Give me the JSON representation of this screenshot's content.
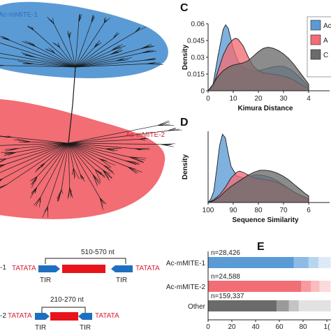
{
  "colors": {
    "family1": "#5b9bd5",
    "family2": "#f26d74",
    "other": "#6b6b6b",
    "tir": "#1f6fc1",
    "core": "#e8141b",
    "tsd_text": "#d4243a"
  },
  "panel_a": {
    "label1": "Ac-mMITE-1",
    "label2": "Ac-mMITE-2"
  },
  "panel_b": {
    "row1_len": "510-570 nt",
    "row2_len": "210-270 nt",
    "tsd": "TATATA",
    "tir": "TIR",
    "row1_label": "-1",
    "row2_label": "-2"
  },
  "panel_c": {
    "letter": "C",
    "legend": [
      "Ac",
      "A",
      "C"
    ]
  },
  "panel_d": {
    "letter": "D"
  },
  "panel_e": {
    "letter": "E"
  },
  "chart_data": [
    {
      "id": "C",
      "type": "area",
      "xlabel": "Kimura Distance",
      "ylabel": "Density",
      "xlim": [
        0,
        40
      ],
      "ylim": [
        0,
        0.06
      ],
      "xticks": [
        "0",
        "10",
        "20",
        "30",
        "4"
      ],
      "yticks": [
        "0",
        "0.015",
        "0.03",
        "0.045",
        "0.06"
      ],
      "grid": false,
      "legend_position": "top-right",
      "series": [
        {
          "x": [
            0,
            2,
            4,
            6,
            7,
            8,
            10,
            12,
            14,
            16,
            18,
            20,
            22,
            25,
            28,
            30,
            33,
            36,
            40
          ],
          "y": [
            0,
            0.006,
            0.032,
            0.055,
            0.059,
            0.056,
            0.038,
            0.026,
            0.021,
            0.019,
            0.018,
            0.018,
            0.019,
            0.021,
            0.022,
            0.022,
            0.019,
            0.013,
            0.004
          ]
        },
        {
          "x": [
            0,
            2,
            4,
            6,
            8,
            10,
            11,
            12,
            14,
            16,
            18,
            20,
            22,
            25,
            28,
            30,
            33,
            36,
            40
          ],
          "y": [
            0,
            0.004,
            0.018,
            0.032,
            0.041,
            0.046,
            0.047,
            0.046,
            0.04,
            0.03,
            0.022,
            0.018,
            0.016,
            0.015,
            0.014,
            0.013,
            0.011,
            0.007,
            0.002
          ]
        },
        {
          "x": [
            0,
            2,
            4,
            6,
            8,
            10,
            12,
            14,
            16,
            18,
            20,
            22,
            24,
            26,
            28,
            30,
            32,
            34,
            36,
            38,
            40
          ],
          "y": [
            0,
            0.006,
            0.013,
            0.018,
            0.021,
            0.023,
            0.024,
            0.025,
            0.027,
            0.031,
            0.035,
            0.038,
            0.039,
            0.038,
            0.036,
            0.033,
            0.029,
            0.024,
            0.018,
            0.012,
            0.006
          ]
        }
      ]
    },
    {
      "id": "D",
      "type": "area",
      "xlabel": "Sequence Similarity",
      "ylabel": "Density",
      "xlim": [
        100,
        65
      ],
      "xticks": [
        "100",
        "90",
        "80",
        "70",
        "6"
      ],
      "grid": false,
      "series": [
        {
          "x": [
            100,
            99,
            98,
            97,
            96,
            95,
            94,
            93,
            92,
            90,
            88,
            86,
            84,
            82,
            80,
            78,
            76,
            74,
            72,
            70,
            68,
            66,
            65
          ],
          "y": [
            0,
            0.004,
            0.012,
            0.035,
            0.06,
            0.072,
            0.068,
            0.052,
            0.038,
            0.028,
            0.026,
            0.027,
            0.029,
            0.029,
            0.028,
            0.026,
            0.023,
            0.019,
            0.015,
            0.011,
            0.007,
            0.004,
            0.003
          ]
        },
        {
          "x": [
            100,
            98,
            96,
            94,
            92,
            90,
            89,
            88,
            86,
            84,
            82,
            80,
            78,
            76,
            74,
            72,
            70,
            68,
            66,
            65
          ],
          "y": [
            0,
            0.003,
            0.008,
            0.016,
            0.026,
            0.032,
            0.033,
            0.032,
            0.029,
            0.026,
            0.025,
            0.024,
            0.023,
            0.021,
            0.018,
            0.015,
            0.011,
            0.008,
            0.005,
            0.004
          ]
        },
        {
          "x": [
            100,
            98,
            96,
            94,
            92,
            90,
            88,
            86,
            84,
            82,
            80,
            78,
            76,
            74,
            72,
            70,
            68,
            66,
            65
          ],
          "y": [
            0,
            0.002,
            0.006,
            0.012,
            0.017,
            0.021,
            0.025,
            0.029,
            0.032,
            0.034,
            0.034,
            0.033,
            0.031,
            0.028,
            0.024,
            0.019,
            0.014,
            0.009,
            0.007
          ]
        }
      ]
    },
    {
      "id": "E",
      "type": "bar",
      "orientation": "horizontal",
      "stacked": true,
      "categories": [
        "Ac-mMITE-1",
        "Ac-mMITE-2",
        "Other"
      ],
      "annotations": [
        "n=28,426",
        "n=24,588",
        "n=159,337"
      ],
      "xlim": [
        0,
        100
      ],
      "xticks": [
        "0",
        "20",
        "40",
        "60",
        "80",
        "1("
      ],
      "segments": [
        [
          70,
          12,
          8,
          10
        ],
        [
          76,
          8,
          7,
          9
        ],
        [
          56,
          10,
          8,
          26
        ]
      ]
    }
  ]
}
